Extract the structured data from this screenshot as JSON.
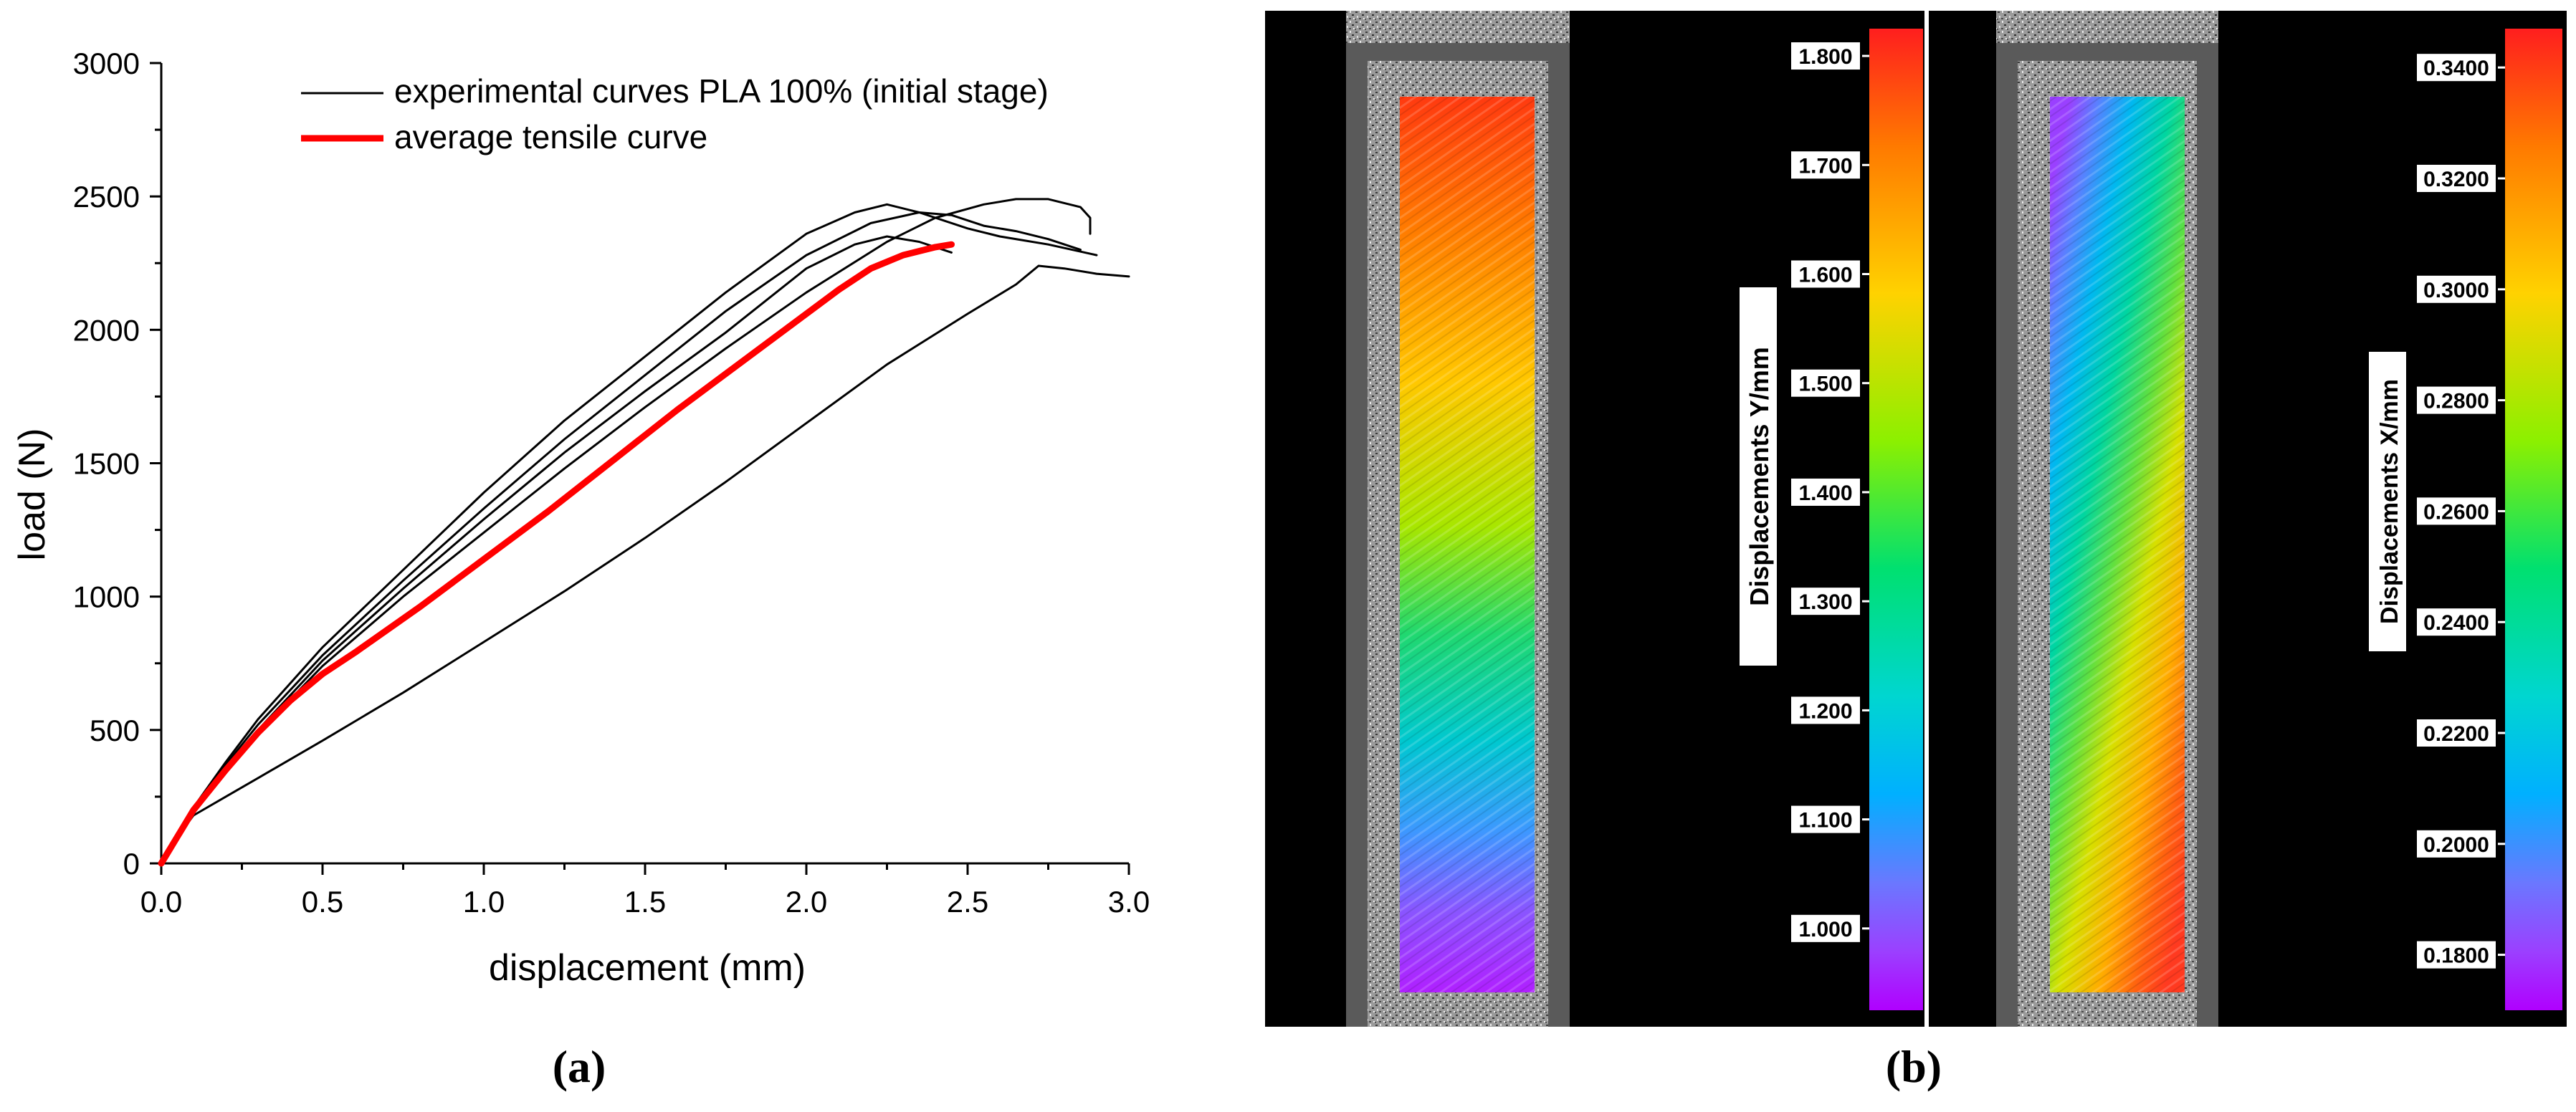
{
  "chart_data": [
    {
      "type": "line",
      "panel_label": "(a)",
      "title": "",
      "xlabel": "displacement (mm)",
      "ylabel": "load (N)",
      "xlim": [
        0.0,
        3.0
      ],
      "ylim": [
        0,
        3000
      ],
      "xticks": [
        0.0,
        0.5,
        1.0,
        1.5,
        2.0,
        2.5,
        3.0
      ],
      "xtick_labels": [
        "0.0",
        "0.5",
        "1.0",
        "1.5",
        "2.0",
        "2.5",
        "3.0"
      ],
      "yticks": [
        0,
        500,
        1000,
        1500,
        2000,
        2500,
        3000
      ],
      "ytick_labels": [
        "0",
        "500",
        "1000",
        "1500",
        "2000",
        "2500",
        "3000"
      ],
      "grid": false,
      "legend_position": "top-right",
      "legend": [
        {
          "label": "experimental curves PLA 100% (initial stage)",
          "color": "#000000"
        },
        {
          "label": "average tensile curve",
          "color": "#ff0000"
        }
      ],
      "series": [
        {
          "name": "experimental curve 1",
          "color": "#000000",
          "group": "experimental",
          "x": [
            0,
            0.1,
            0.2,
            0.3,
            0.5,
            0.75,
            1.0,
            1.25,
            1.5,
            1.75,
            2.0,
            2.15,
            2.25,
            2.35,
            2.5,
            2.6,
            2.75,
            2.9
          ],
          "y": [
            0,
            210,
            380,
            540,
            810,
            1100,
            1390,
            1660,
            1900,
            2140,
            2360,
            2440,
            2470,
            2440,
            2380,
            2350,
            2320,
            2280
          ]
        },
        {
          "name": "experimental curve 2",
          "color": "#000000",
          "group": "experimental",
          "x": [
            0,
            0.1,
            0.2,
            0.3,
            0.5,
            0.75,
            1.0,
            1.25,
            1.5,
            1.75,
            2.0,
            2.2,
            2.35,
            2.45,
            2.55,
            2.65,
            2.75,
            2.85
          ],
          "y": [
            0,
            205,
            370,
            520,
            780,
            1060,
            1330,
            1590,
            1830,
            2070,
            2280,
            2400,
            2440,
            2430,
            2390,
            2370,
            2340,
            2300
          ]
        },
        {
          "name": "experimental curve 3",
          "color": "#000000",
          "group": "experimental",
          "x": [
            0,
            0.1,
            0.2,
            0.3,
            0.5,
            0.75,
            1.0,
            1.25,
            1.5,
            1.75,
            2.0,
            2.15,
            2.25,
            2.35,
            2.45
          ],
          "y": [
            0,
            200,
            355,
            500,
            760,
            1030,
            1290,
            1540,
            1770,
            1990,
            2230,
            2320,
            2350,
            2330,
            2290
          ]
        },
        {
          "name": "experimental curve 4",
          "color": "#000000",
          "group": "experimental",
          "x": [
            0,
            0.1,
            0.2,
            0.3,
            0.5,
            0.75,
            1.0,
            1.25,
            1.5,
            1.75,
            2.0,
            2.25,
            2.4,
            2.55,
            2.65,
            2.75,
            2.85,
            2.88,
            2.88
          ],
          "y": [
            0,
            195,
            345,
            490,
            740,
            1000,
            1240,
            1480,
            1710,
            1930,
            2140,
            2330,
            2420,
            2470,
            2490,
            2490,
            2460,
            2420,
            2360
          ]
        },
        {
          "name": "experimental curve 5",
          "color": "#000000",
          "group": "experimental",
          "x": [
            0,
            0.05,
            0.1,
            0.2,
            0.3,
            0.5,
            0.75,
            1.0,
            1.25,
            1.5,
            1.75,
            2.0,
            2.25,
            2.5,
            2.65,
            2.72,
            2.8,
            2.9,
            3.0
          ],
          "y": [
            0,
            100,
            180,
            250,
            320,
            460,
            640,
            830,
            1020,
            1220,
            1430,
            1650,
            1870,
            2060,
            2170,
            2240,
            2230,
            2210,
            2200
          ]
        },
        {
          "name": "average tensile curve",
          "color": "#ff0000",
          "group": "average",
          "x": [
            0,
            0.1,
            0.2,
            0.3,
            0.4,
            0.5,
            0.6,
            0.8,
            1.0,
            1.2,
            1.4,
            1.6,
            1.8,
            2.0,
            2.1,
            2.2,
            2.3,
            2.4,
            2.45
          ],
          "y": [
            0,
            200,
            350,
            490,
            610,
            710,
            790,
            960,
            1140,
            1320,
            1510,
            1700,
            1880,
            2060,
            2150,
            2230,
            2280,
            2310,
            2320
          ]
        }
      ]
    },
    {
      "type": "heatmap",
      "panel_label": "(b)",
      "maps": [
        {
          "colorbar_label": "Displacements Y/mm",
          "tick_labels": [
            "1.800",
            "1.700",
            "1.600",
            "1.500",
            "1.400",
            "1.300",
            "1.200",
            "1.100",
            "1.000"
          ],
          "ticks": [
            1.8,
            1.7,
            1.6,
            1.5,
            1.4,
            1.3,
            1.2,
            1.1,
            1.0
          ],
          "range": [
            0.925,
            1.825
          ],
          "field_top_value": 1.75,
          "field_bottom_value": 0.96
        },
        {
          "colorbar_label": "Displacements X/mm",
          "tick_labels": [
            "0.3400",
            "0.3200",
            "0.3000",
            "0.2800",
            "0.2600",
            "0.2400",
            "0.2200",
            "0.2000",
            "0.1800"
          ],
          "ticks": [
            0.34,
            0.32,
            0.3,
            0.28,
            0.26,
            0.24,
            0.22,
            0.2,
            0.18
          ],
          "range": [
            0.17,
            0.347
          ],
          "field_top_value": 0.19,
          "field_bottom_value": 0.335
        }
      ]
    }
  ]
}
